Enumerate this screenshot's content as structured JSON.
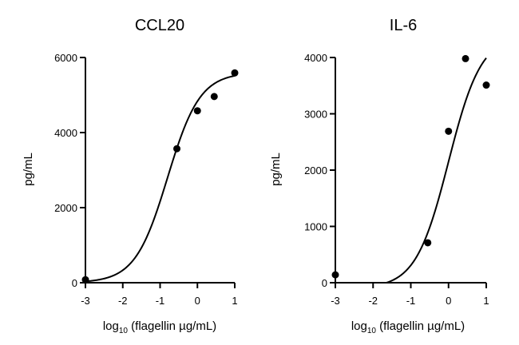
{
  "chart_data": [
    {
      "type": "scatter",
      "title": "CCL20",
      "xlabel": "log",
      "xlabel_sub": "10",
      "xlabel_rest": " (flagellin µg/mL)",
      "ylabel": "pg/mL",
      "xlim": [
        -3,
        1
      ],
      "ylim": [
        0,
        6000
      ],
      "xticks": [
        -3,
        -2,
        -1,
        0,
        1
      ],
      "yticks": [
        0,
        2000,
        4000,
        6000
      ],
      "points": [
        {
          "x": -3,
          "y": 80
        },
        {
          "x": -0.55,
          "y": 3570
        },
        {
          "x": 0,
          "y": 4580
        },
        {
          "x": 0.45,
          "y": 4960
        },
        {
          "x": 1,
          "y": 5590
        }
      ],
      "fit": {
        "model": "four-parameter logistic",
        "bottom": 0,
        "top": 5600,
        "logEC50": -0.8,
        "hill": 1.0
      }
    },
    {
      "type": "scatter",
      "title": "IL-6",
      "xlabel": "log",
      "xlabel_sub": "10",
      "xlabel_rest": " (flagellin µg/mL)",
      "ylabel": "pg/mL",
      "xlim": [
        -3,
        1
      ],
      "ylim": [
        0,
        4000
      ],
      "xticks": [
        -3,
        -2,
        -1,
        0,
        1
      ],
      "yticks": [
        0,
        1000,
        2000,
        3000,
        4000
      ],
      "points": [
        {
          "x": -3,
          "y": 140
        },
        {
          "x": -0.55,
          "y": 710
        },
        {
          "x": 0,
          "y": 2690
        },
        {
          "x": 0.45,
          "y": 3980
        },
        {
          "x": 1,
          "y": 3510
        }
      ],
      "fit": {
        "model": "four-parameter logistic",
        "bottom": -100,
        "top": 4400,
        "logEC50": 0.0,
        "hill": 1.0
      }
    }
  ]
}
